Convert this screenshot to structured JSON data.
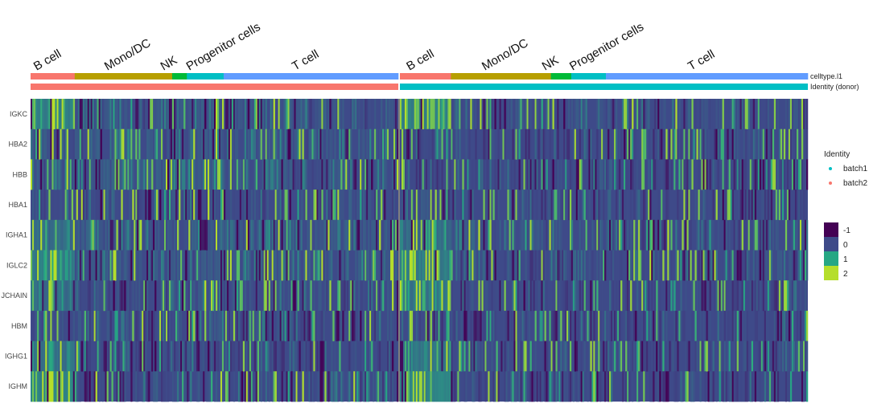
{
  "chart_data": {
    "type": "heatmap",
    "title": "",
    "xlabel": "",
    "ylabel": "",
    "genes": [
      "IGKC",
      "HBA2",
      "HBB",
      "HBA1",
      "IGHA1",
      "IGLC2",
      "JCHAIN",
      "HBM",
      "IGHG1",
      "IGHM"
    ],
    "annotation_rows": [
      {
        "name": "celltype.l1",
        "label": "celltype.l1"
      },
      {
        "name": "Identity (donor)",
        "label": "Identity (donor)"
      }
    ],
    "splits": [
      {
        "identity": "batch2",
        "color": "#f8766d",
        "groups": [
          {
            "label": "B cell",
            "fraction": 0.12
          },
          {
            "label": "Mono/DC",
            "fraction": 0.265
          },
          {
            "label": "NK",
            "fraction": 0.04
          },
          {
            "label": "Progenitor cells",
            "fraction": 0.1
          },
          {
            "label": "T cell",
            "fraction": 0.475
          }
        ]
      },
      {
        "identity": "batch1",
        "color": "#00bfc4",
        "groups": [
          {
            "label": "B cell",
            "fraction": 0.125
          },
          {
            "label": "Mono/DC",
            "fraction": 0.245
          },
          {
            "label": "NK",
            "fraction": 0.05
          },
          {
            "label": "Progenitor cells",
            "fraction": 0.085
          },
          {
            "label": "T cell",
            "fraction": 0.495
          }
        ]
      }
    ],
    "celltype_colors": {
      "B cell": "#f8766d",
      "Mono/DC": "#b79f00",
      "NK": "#00ba38",
      "Progenitor cells": "#00bfc4",
      "T cell": "#619cff"
    },
    "identity_legend": {
      "title": "Identity",
      "items": [
        {
          "label": "batch1",
          "color": "#00bfc4"
        },
        {
          "label": "batch2",
          "color": "#f8766d"
        }
      ]
    },
    "color_scale": {
      "ticks": [
        "-1",
        "0",
        "1",
        "2"
      ],
      "colors": [
        "#440154",
        "#3e4a89",
        "#26a784",
        "#b5de2b"
      ],
      "range": [
        -1,
        2
      ]
    },
    "mean_expression": {
      "note_rows_match_genes": true,
      "batch2": {
        "B cell": [
          1.4,
          0.2,
          0.3,
          0.1,
          0.9,
          1.3,
          1.0,
          0.1,
          0.9,
          1.6
        ],
        "Mono/DC": [
          0.2,
          0.3,
          0.4,
          0.1,
          0.3,
          0.3,
          0.1,
          0.1,
          0.0,
          0.1
        ],
        "NK": [
          0.2,
          0.3,
          0.4,
          0.1,
          0.3,
          0.3,
          0.1,
          0.0,
          0.0,
          0.1
        ],
        "Progenitor cells": [
          0.3,
          0.4,
          0.6,
          0.2,
          0.4,
          0.3,
          0.2,
          0.2,
          0.2,
          0.2
        ],
        "T cell": [
          0.2,
          0.3,
          0.3,
          0.1,
          0.3,
          0.3,
          0.1,
          0.1,
          0.0,
          0.1
        ]
      },
      "batch1": {
        "B cell": [
          1.5,
          0.1,
          0.0,
          0.1,
          0.8,
          1.4,
          1.2,
          0.0,
          1.1,
          1.5
        ],
        "Mono/DC": [
          0.1,
          0.0,
          0.0,
          0.0,
          0.2,
          0.1,
          0.0,
          0.0,
          0.1,
          0.0
        ],
        "NK": [
          0.1,
          0.0,
          0.0,
          0.0,
          0.2,
          0.1,
          0.0,
          0.0,
          0.0,
          0.0
        ],
        "Progenitor cells": [
          0.2,
          0.1,
          0.2,
          0.0,
          0.2,
          0.1,
          0.0,
          0.0,
          0.1,
          0.0
        ],
        "T cell": [
          0.1,
          0.0,
          -0.1,
          0.0,
          0.1,
          0.1,
          0.0,
          0.0,
          0.0,
          0.0
        ]
      }
    }
  }
}
